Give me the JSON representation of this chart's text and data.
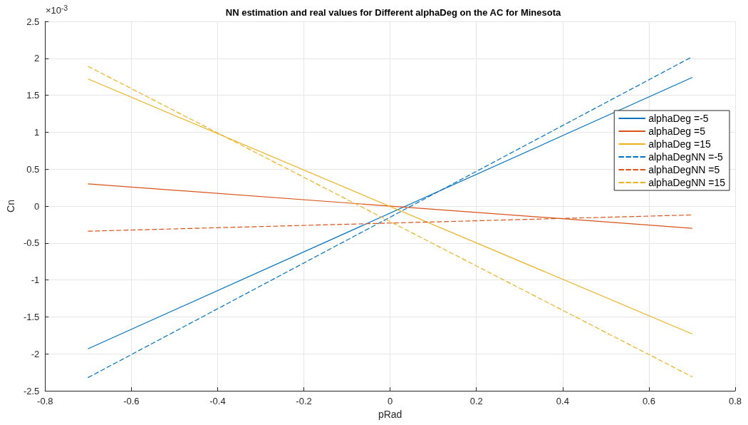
{
  "chart_data": {
    "type": "line",
    "title": "NN estimation and real values for Different alphaDeg on the AC for Minesota",
    "xlabel": "pRad",
    "ylabel": "Cn",
    "annotations": [
      "×10$^{-3}$"
    ],
    "x": [
      -0.7,
      0.7
    ],
    "series": [
      {
        "name": "alphaDeg =-5",
        "color": "#0072bd",
        "values": [
          -1.93,
          1.74
        ],
        "line_style": "solid"
      },
      {
        "name": "alphaDeg =5",
        "color": "#d95319",
        "values": [
          0.3,
          -0.3
        ],
        "line_style": "solid"
      },
      {
        "name": "alphaDeg =15",
        "color": "#edb120",
        "values": [
          1.72,
          -1.73
        ],
        "line_style": "solid"
      },
      {
        "name": "alphaDegNN =-5",
        "color": "#0072bd",
        "values": [
          -2.32,
          2.02
        ],
        "line_style": "dashed"
      },
      {
        "name": "alphaDegNN =5",
        "color": "#d95319",
        "values": [
          -0.34,
          -0.12
        ],
        "line_style": "dashed"
      },
      {
        "name": "alphaDegNN =15",
        "color": "#edb120",
        "values": [
          1.89,
          -2.31
        ],
        "line_style": "dashed"
      }
    ],
    "xlim": [
      -0.8,
      0.8
    ],
    "xticks": [
      -0.8,
      -0.6,
      -0.4,
      -0.2,
      0,
      0.2,
      0.4,
      0.6,
      0.8
    ],
    "ylim": [
      -2.5,
      2.5
    ],
    "yticks": [
      -2.5,
      -2,
      -1.5,
      -1,
      -0.5,
      0,
      0.5,
      1,
      1.5,
      2,
      2.5
    ],
    "grid": true,
    "legend": "top right",
    "marker": "none"
  }
}
